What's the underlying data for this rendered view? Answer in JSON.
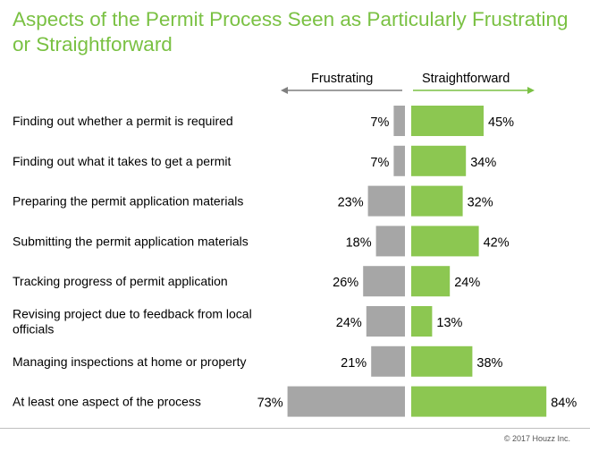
{
  "title": "Aspects of the Permit Process Seen as Particularly Frustrating or Straightforward",
  "colors": {
    "title": "#7ac143",
    "frustrating": "#a6a6a6",
    "straightforward": "#8cc751",
    "arrow_left": "#7f7f7f",
    "arrow_right": "#7ac143"
  },
  "legend": {
    "left_label": "Frustrating",
    "right_label": "Straightforward"
  },
  "credit": "© 2017 Houzz Inc.",
  "chart_data": {
    "type": "bar",
    "orientation": "diverging-horizontal",
    "title": "Aspects of the Permit Process Seen as Particularly Frustrating or Straightforward",
    "unit": "%",
    "categories": [
      "Finding out whether a permit is required",
      "Finding out what it takes to get a permit",
      "Preparing the permit application materials",
      "Submitting the permit application materials",
      "Tracking progress of permit application",
      "Revising project due to feedback from local officials",
      "Managing inspections at home or property",
      "At least one aspect of the process"
    ],
    "category_lines": [
      [
        "Finding out whether a permit is required"
      ],
      [
        "Finding out what it takes to get a permit"
      ],
      [
        "Preparing the permit application materials"
      ],
      [
        "Submitting the permit application materials"
      ],
      [
        "Tracking progress of permit application"
      ],
      [
        "Revising project due to feedback from local",
        "officials"
      ],
      [
        "Managing inspections at home or property"
      ],
      [
        "At least one aspect of the process"
      ]
    ],
    "series": [
      {
        "name": "Frustrating",
        "direction": "left",
        "values": [
          7,
          7,
          23,
          18,
          26,
          24,
          21,
          73
        ],
        "labels": [
          "7%",
          "7%",
          "23%",
          "18%",
          "26%",
          "24%",
          "21%",
          "73%"
        ]
      },
      {
        "name": "Straightforward",
        "direction": "right",
        "values": [
          45,
          34,
          32,
          42,
          24,
          13,
          38,
          84
        ],
        "labels": [
          "45%",
          "34%",
          "32%",
          "42%",
          "24%",
          "13%",
          "38%",
          "84%"
        ]
      }
    ],
    "grid": false
  }
}
